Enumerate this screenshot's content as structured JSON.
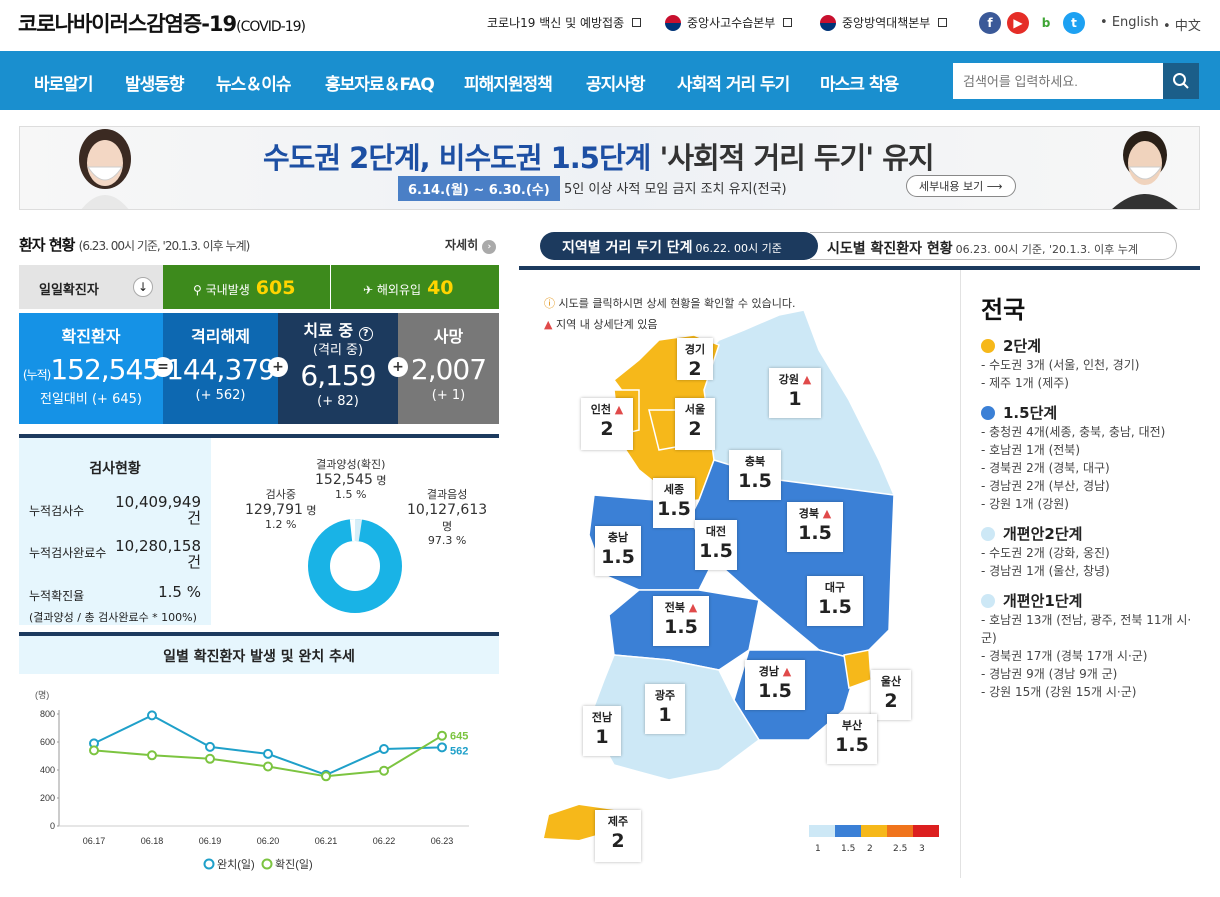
{
  "header": {
    "logo_main": "코로나바이러스감염증-19",
    "logo_sub": "(COVID-19)",
    "links": [
      "코로나19 백신 및 예방접종",
      "중앙사고수습본부",
      "중앙방역대책본부"
    ],
    "lang1": "English",
    "lang2": "中文"
  },
  "nav": {
    "items": [
      "바로알기",
      "발생동향",
      "뉴스＆이슈",
      "홍보자료＆FAQ",
      "피해지원정책",
      "공지사항",
      "사회적 거리 두기",
      "마스크 착용"
    ],
    "search_placeholder": "검색어를 입력하세요."
  },
  "banner": {
    "title_blue": "수도권 2단계, 비수도권 1.5단계",
    "title_dark": " '사회적 거리 두기' 유지",
    "date": "6.14.(월) ~ 6.30.(수)",
    "sub": "5인 이상 사적 모임 금지 조치 유지(전국)",
    "more": "세부내용 보기"
  },
  "patient": {
    "title": "환자 현황",
    "note": "(6.23. 00시 기준, '20.1.3. 이후 누계)",
    "more": "자세히",
    "daily_label": "일일확진자",
    "domestic_label": "국내발생",
    "domestic": "605",
    "abroad_label": "해외유입",
    "abroad": "40",
    "confirmed_label": "확진환자",
    "confirmed_prefix": "(누적)",
    "confirmed": "152,545",
    "confirmed_delta": "전일대비 (+ 645)",
    "released_label": "격리해제",
    "released": "144,379",
    "released_delta": "(+ 562)",
    "treating_label": "치료 중",
    "treating_sub": "(격리 중)",
    "treating": "6,159",
    "treating_delta": "(+ 82)",
    "death_label": "사망",
    "death": "2,007",
    "death_delta": "(+ 1)"
  },
  "tests": {
    "title": "검사현황",
    "rows": [
      {
        "label": "누적검사수",
        "value": "10,409,949",
        "unit": "건"
      },
      {
        "label": "누적검사완료수",
        "value": "10,280,158",
        "unit": "건"
      },
      {
        "label": "누적확진율",
        "value": "1.5 %",
        "unit": ""
      }
    ],
    "footnote": "(결과양성 / 총 검사완료수 * 100%)",
    "pending_label": "검사중",
    "pending": "129,791",
    "pending_unit": "명",
    "pending_pct": "1.2 %",
    "positive_label": "결과양성(확진)",
    "positive": "152,545",
    "positive_unit": "명",
    "positive_pct": "1.5 %",
    "negative_label": "결과음성",
    "negative": "10,127,613",
    "negative_unit": "명",
    "negative_pct": "97.3 %"
  },
  "trend": {
    "title": "일별 확진환자 발생 및 완치 추세",
    "unit": "(명)",
    "legend_recovered": "완치(일)",
    "legend_confirmed": "확진(일)",
    "label_confirmed": "645",
    "label_recovered": "562"
  },
  "chart_data": {
    "type": "line",
    "categories": [
      "06.17",
      "06.18",
      "06.19",
      "06.20",
      "06.21",
      "06.22",
      "06.23"
    ],
    "series": [
      {
        "name": "완치(일)",
        "values": [
          590,
          790,
          565,
          515,
          365,
          550,
          562
        ],
        "color": "#1fa0c9"
      },
      {
        "name": "확진(일)",
        "values": [
          540,
          505,
          480,
          425,
          355,
          395,
          645
        ],
        "color": "#7cc440"
      }
    ],
    "ylim": [
      0,
      800
    ],
    "yticks": [
      0,
      200,
      400,
      600,
      800
    ]
  },
  "distancing": {
    "tab_a": "지역별 거리 두기 단계",
    "tab_a_note": "06.22. 00시 기준",
    "tab_b": "시도별 확진환자 현황",
    "tab_b_note": "06.23. 00시 기준, '20.1.3. 이후 누계",
    "info1": "시도를 클릭하시면 상세 현황을 확인할 수 있습니다.",
    "info2": "지역 내 상세단계 있음",
    "regions": [
      {
        "name": "경기",
        "level": "2"
      },
      {
        "name": "강원",
        "level": "1"
      },
      {
        "name": "인천",
        "level": "2"
      },
      {
        "name": "서울",
        "level": "2"
      },
      {
        "name": "충북",
        "level": "1.5"
      },
      {
        "name": "세종",
        "level": "1.5"
      },
      {
        "name": "경북",
        "level": "1.5"
      },
      {
        "name": "충남",
        "level": "1.5"
      },
      {
        "name": "대전",
        "level": "1.5"
      },
      {
        "name": "대구",
        "level": "1.5"
      },
      {
        "name": "전북",
        "level": "1.5"
      },
      {
        "name": "경남",
        "level": "1.5"
      },
      {
        "name": "울산",
        "level": "2"
      },
      {
        "name": "광주",
        "level": "1"
      },
      {
        "name": "부산",
        "level": "1.5"
      },
      {
        "name": "전남",
        "level": "1"
      },
      {
        "name": "제주",
        "level": "2"
      }
    ],
    "legend": [
      "1",
      "1.5",
      "2",
      "2.5",
      "3"
    ],
    "legend_colors": [
      "#cde8f6",
      "#3b80d6",
      "#f6b81a",
      "#f0741c",
      "#dc1f1f"
    ],
    "side_title": "전국",
    "levels": [
      {
        "name": "2단계",
        "color": "#f6b81a",
        "items": [
          "- 수도권 3개 (서울, 인천, 경기)",
          "- 제주 1개 (제주)"
        ]
      },
      {
        "name": "1.5단계",
        "color": "#3b80d6",
        "items": [
          "- 충청권 4개(세종, 충북, 충남, 대전)",
          "- 호남권 1개 (전북)",
          "- 경북권 2개 (경북, 대구)",
          "- 경남권 2개 (부산, 경남)",
          "- 강원 1개 (강원)"
        ]
      },
      {
        "name": "개편안2단계",
        "color": "#cde8f6",
        "items": [
          "- 수도권 2개 (강화, 옹진)",
          "- 경남권 1개 (울산, 창녕)"
        ]
      },
      {
        "name": "개편안1단계",
        "color": "#cde8f6",
        "items": [
          "- 호남권 13개 (전남, 광주, 전북 11개 시·군)",
          "- 경북권 17개 (경북 17개 시·군)",
          "- 경남권 9개 (경남 9개 군)",
          "- 강원 15개 (강원 15개 시·군)"
        ]
      }
    ]
  }
}
